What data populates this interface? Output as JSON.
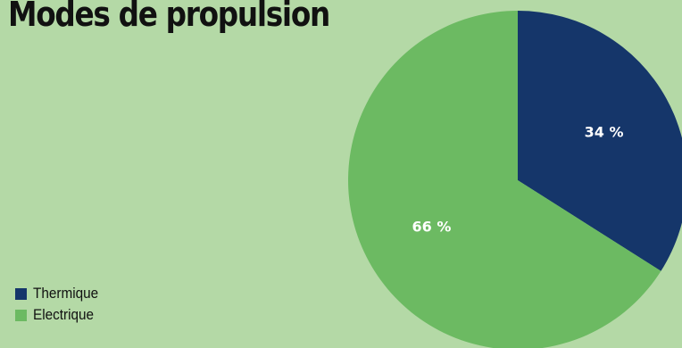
{
  "chart_data": {
    "type": "pie",
    "title": "Modes de propulsion",
    "categories": [
      "Thermique",
      "Electrique"
    ],
    "values": [
      34,
      66
    ],
    "data_labels": [
      "34 %",
      "66 %"
    ],
    "colors": [
      "#15366a",
      "#6cba62"
    ],
    "legend": {
      "placement": "bottom-left",
      "entries": [
        "Thermique",
        "Electrique"
      ]
    }
  }
}
